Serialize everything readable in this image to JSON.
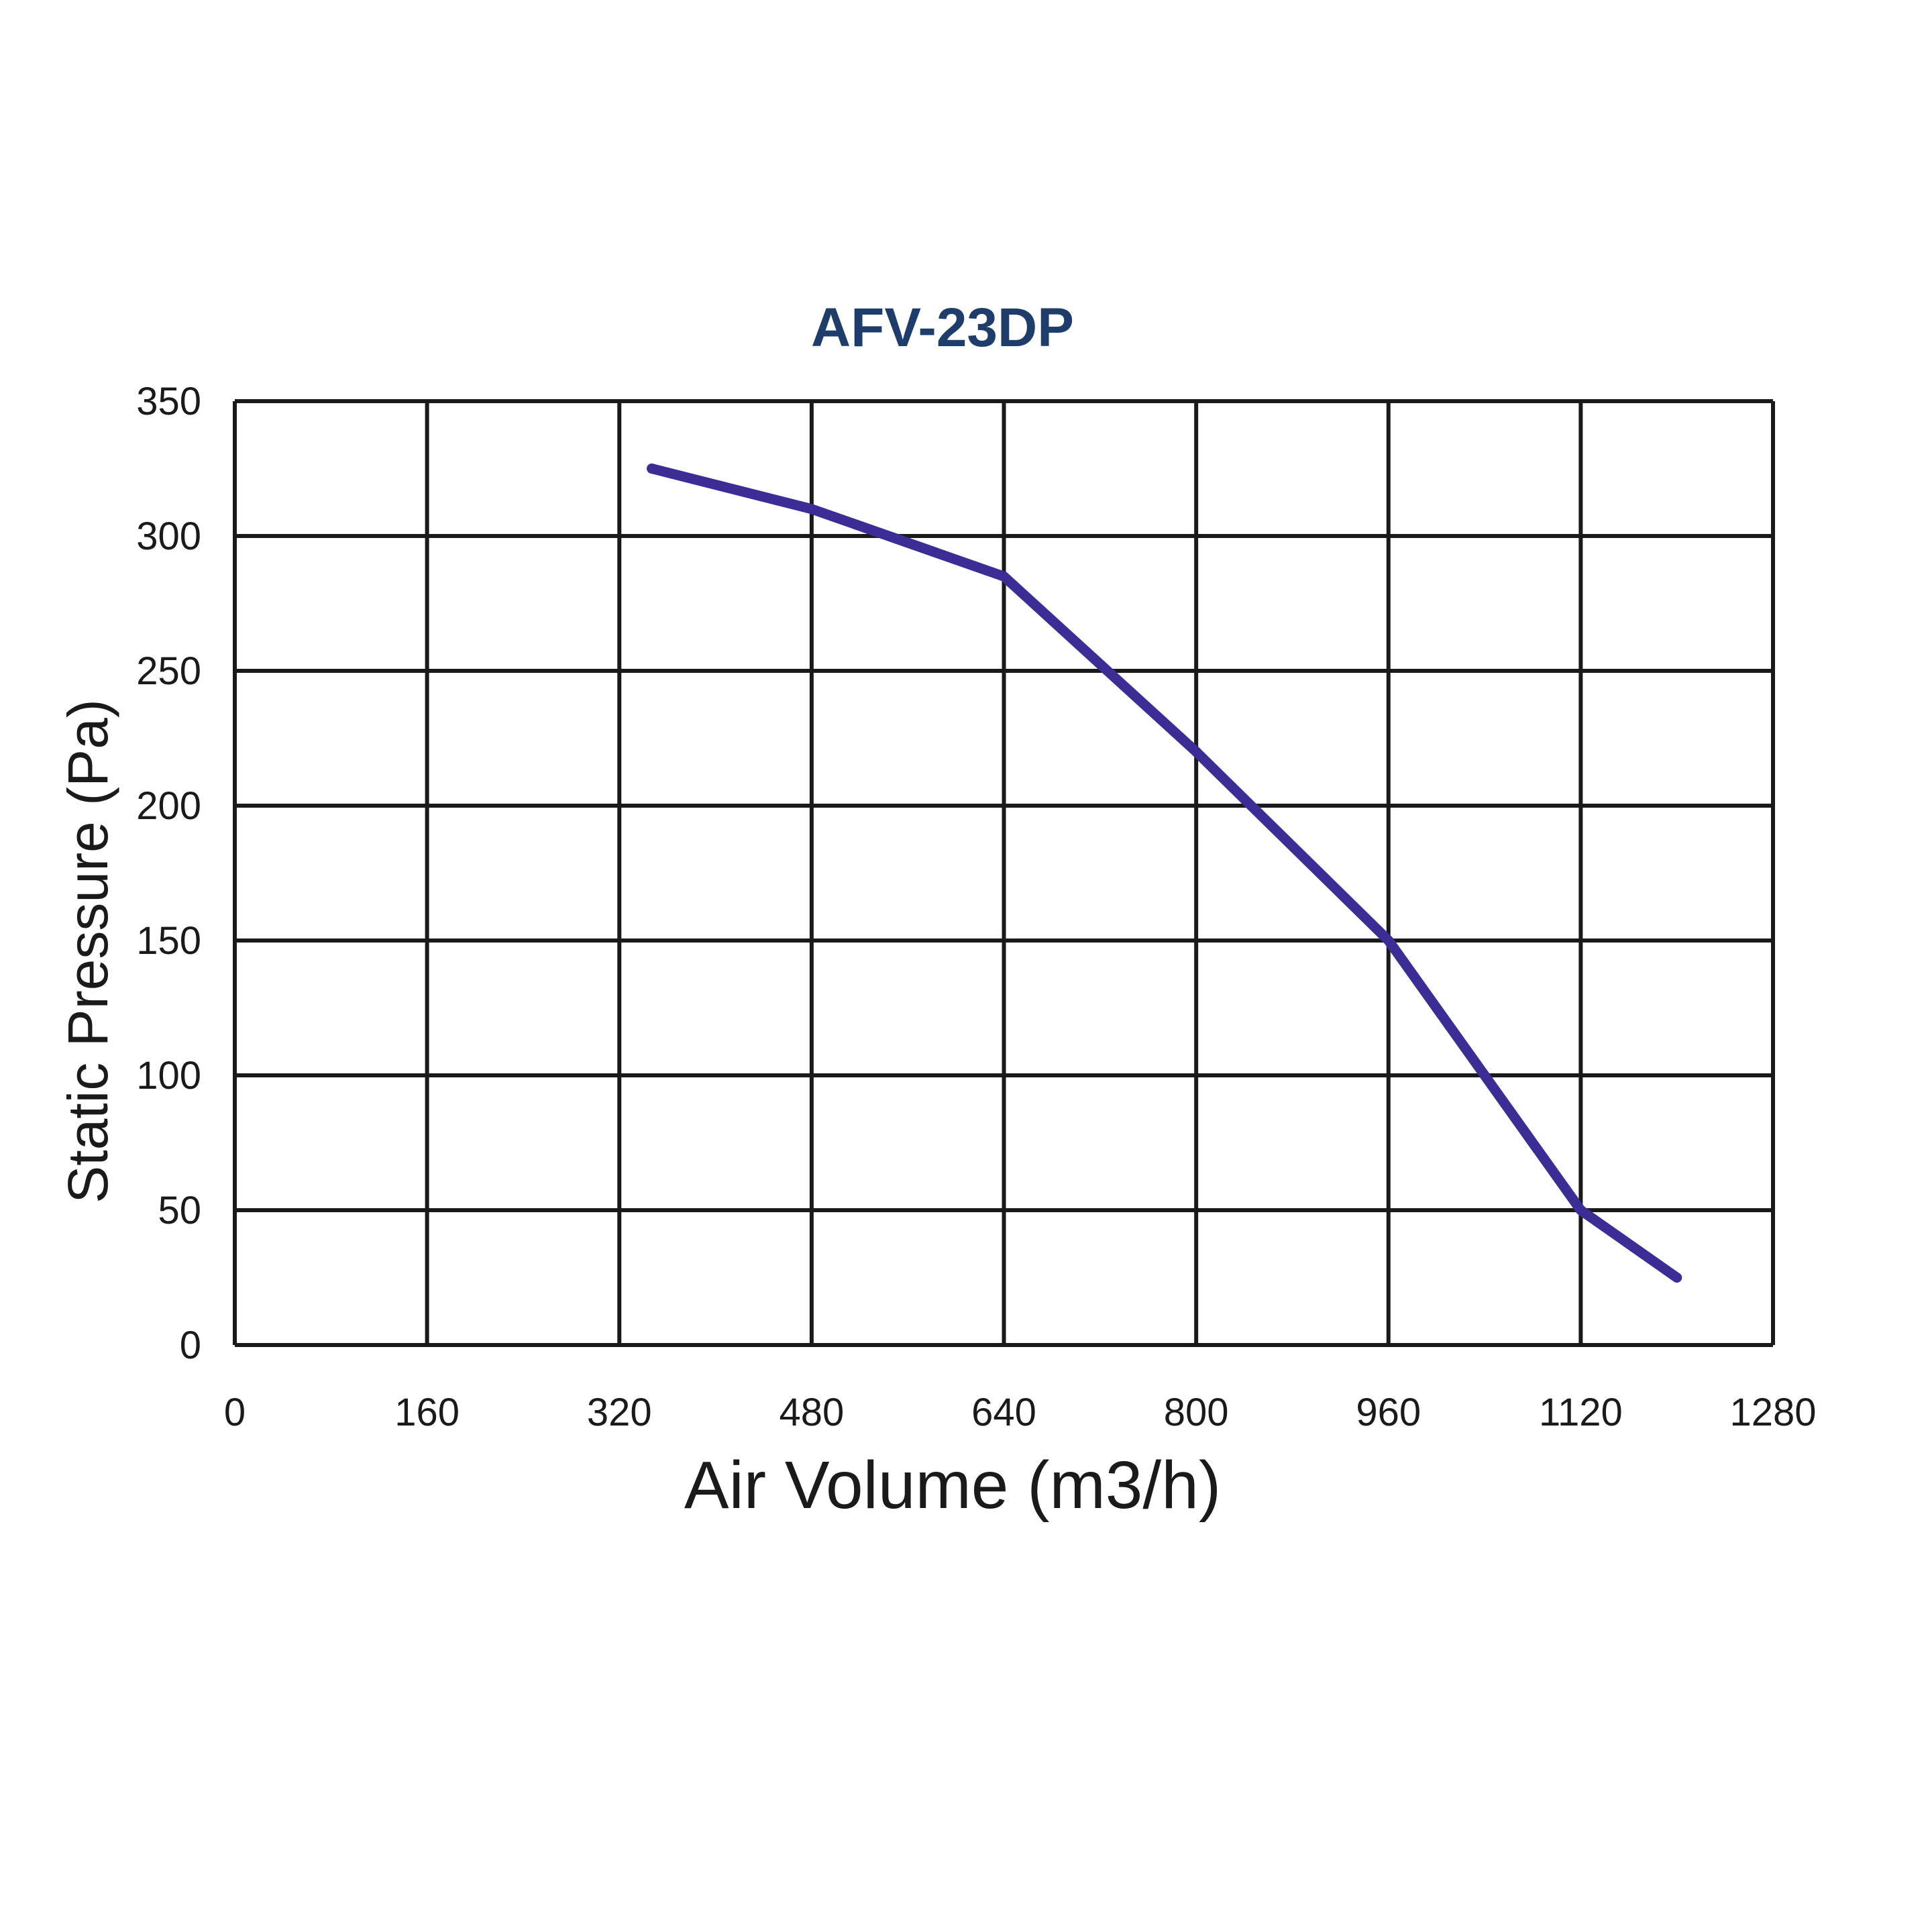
{
  "chart_data": {
    "type": "line",
    "title": "AFV-23DP",
    "xlabel": "Air Volume (m3/h)",
    "ylabel": "Static Pressure (Pa)",
    "xlim": [
      0,
      1280
    ],
    "ylim": [
      0,
      350
    ],
    "x_ticks": [
      0,
      160,
      320,
      480,
      640,
      800,
      960,
      1120,
      1280
    ],
    "y_ticks": [
      0,
      50,
      100,
      150,
      200,
      250,
      300,
      350
    ],
    "x_tick_labels": [
      "0",
      "160",
      "320",
      "480",
      "640",
      "800",
      "960",
      "1120",
      "1280"
    ],
    "y_tick_labels": [
      "0",
      "50",
      "100",
      "150",
      "200",
      "250",
      "300",
      "350"
    ],
    "grid": true,
    "legend": "none",
    "series": [
      {
        "name": "AFV-23DP",
        "color": "#3a2d96",
        "x": [
          347,
          480,
          640,
          800,
          960,
          1120,
          1200
        ],
        "y": [
          325,
          310,
          285,
          220,
          150,
          50,
          25
        ]
      }
    ]
  }
}
